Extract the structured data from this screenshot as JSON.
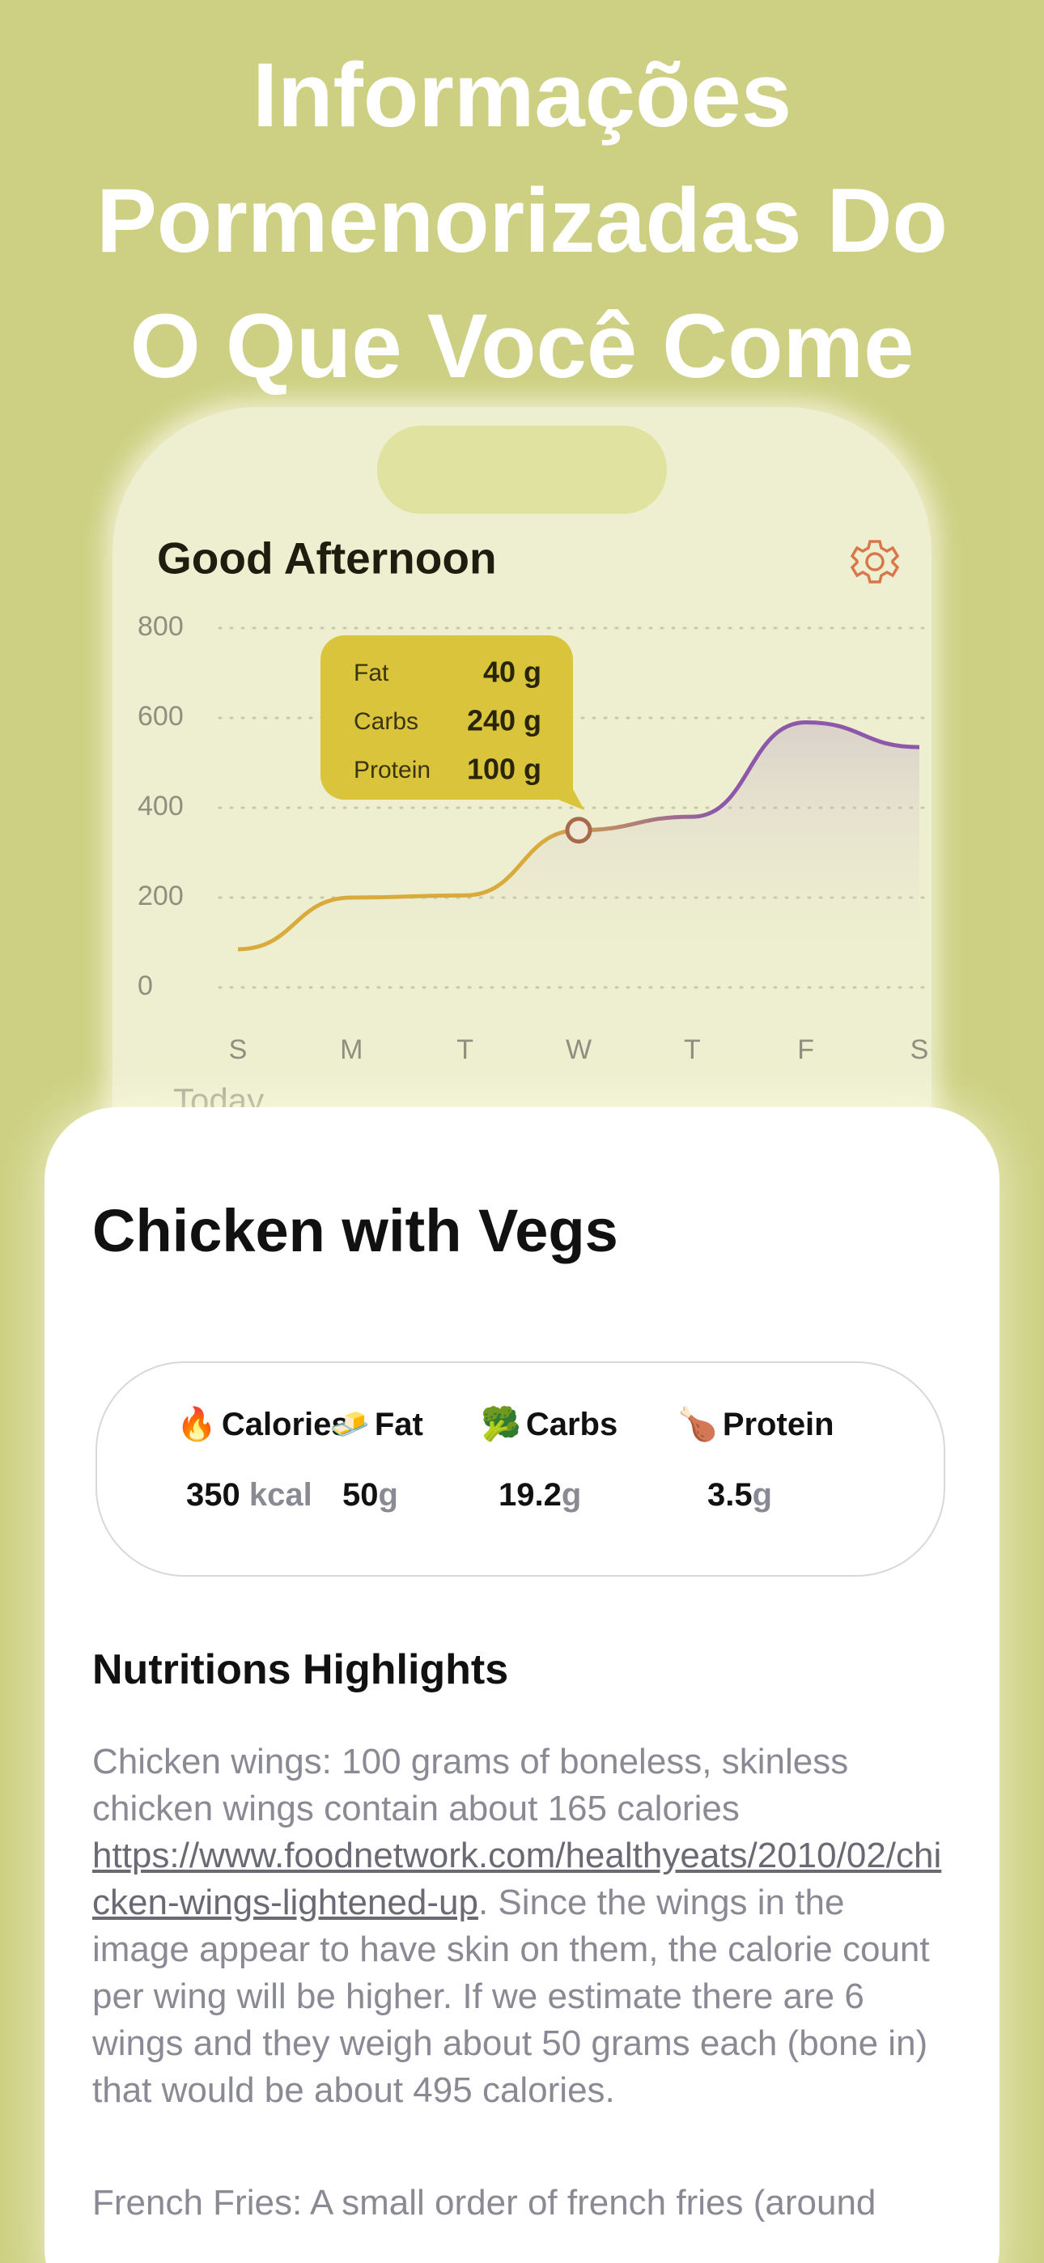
{
  "header": {
    "title_lines": [
      "Informações",
      "Pormenorizadas Do",
      "O Que Você Come"
    ]
  },
  "screen": {
    "greeting": "Good Afternoon",
    "section_label": "Today",
    "tooltip": {
      "category_index": 3,
      "rows": [
        {
          "label": "Fat",
          "value": "40 g"
        },
        {
          "label": "Carbs",
          "value": "240 g"
        },
        {
          "label": "Protein",
          "value": "100 g"
        }
      ]
    }
  },
  "chart_data": {
    "type": "line",
    "categories": [
      "S",
      "M",
      "T",
      "W",
      "T",
      "F",
      "S"
    ],
    "values": [
      85,
      200,
      205,
      350,
      380,
      590,
      535
    ],
    "ylim": [
      0,
      800
    ],
    "yticks": [
      0,
      200,
      400,
      600,
      800
    ],
    "grid": true,
    "colors": [
      "#d9ab3c",
      "#8e58aa"
    ]
  },
  "meal": {
    "name": "Chicken with Vegs",
    "nutrients": [
      {
        "icon": "🔥",
        "label": "Calories",
        "amount": 350,
        "unit": "kcal"
      },
      {
        "icon": "🧈",
        "label": "Fat",
        "amount": 50,
        "unit": "g"
      },
      {
        "icon": "🥦",
        "label": "Carbs",
        "amount": 19.2,
        "unit": "g"
      },
      {
        "icon": "🍗",
        "label": "Protein",
        "amount": 3.5,
        "unit": "g"
      }
    ],
    "highlights_title": "Nutritions Highlights",
    "paragraphs": [
      {
        "before": "Chicken wings: 100 grams of boneless, skinless chicken wings contain about 165 calories ",
        "link": "https://www.foodnetwork.com/healthyeats/2010/02/chicken-wings-lightened-up",
        "after": ". Since the wings in the image appear to have skin on them, the calorie count per wing will be higher. If we estimate there are 6 wings and they weigh about 50 grams each (bone in) that would be about 495 calories."
      },
      {
        "before": "French Fries: A small order of french fries (around"
      }
    ]
  }
}
